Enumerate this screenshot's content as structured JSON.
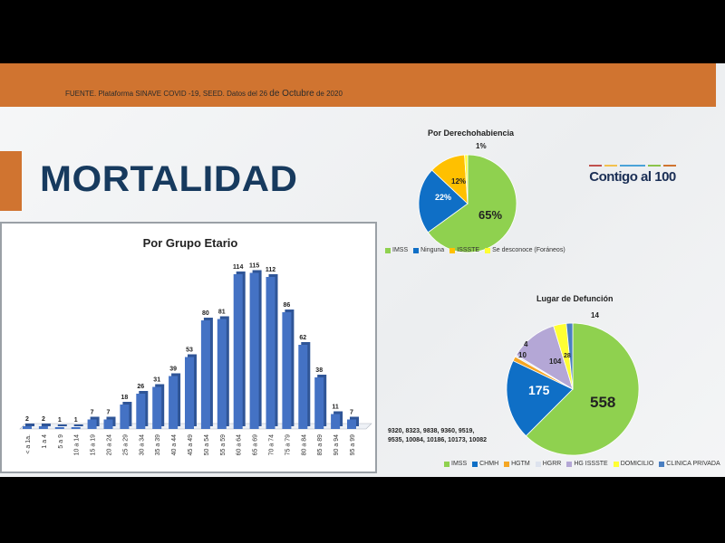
{
  "header": {
    "source_prefix": "FUENTE. Plataforma SINAVE COVID -19, SEED. Datos del 26 ",
    "source_big": "de Octubre",
    "source_suffix": " de 2020"
  },
  "title": "MORTALIDAD",
  "logo": {
    "text": "Contigo al 100",
    "colors": [
      "#c0504d",
      "#f2c14e",
      "#4aa3d8",
      "#8bc34a",
      "#d07430"
    ]
  },
  "chart_data": [
    {
      "type": "bar",
      "title": "Por Grupo Etario",
      "categories": [
        "< a 1a.",
        "1 a 4",
        "5 a 9",
        "10 a 14",
        "15 a 19",
        "20 a 24",
        "25 a 29",
        "30 a 34",
        "35 a 39",
        "40 a 44",
        "45 a 49",
        "50 a 54",
        "55 a 59",
        "60 a 64",
        "65 a 69",
        "70 a 74",
        "75 a 79",
        "80 a 84",
        "85 a 89",
        "90 a 94",
        "95 a 99"
      ],
      "values": [
        2,
        2,
        1,
        1,
        7,
        7,
        18,
        26,
        31,
        39,
        53,
        80,
        81,
        114,
        115,
        112,
        86,
        62,
        38,
        11,
        7
      ],
      "color": "#4472c4"
    },
    {
      "type": "pie",
      "title": "Por Derechohabiencia",
      "labels": [
        "IMSS",
        "Ninguna",
        "ISSSTE",
        "Se desconoce (Foráneos)"
      ],
      "values": [
        65,
        22,
        12,
        1
      ],
      "value_labels": [
        "65%",
        "22%",
        "12%",
        "1%"
      ],
      "colors": [
        "#8fd14f",
        "#0f6fc6",
        "#ffc000",
        "#ffff33"
      ]
    },
    {
      "type": "pie",
      "title": "Lugar de Defunción",
      "labels": [
        "IMSS",
        "CHMH",
        "HGTM",
        "HGRR",
        "HG ISSSTE",
        "DOMICILIO",
        "CLINICA PRIVADA"
      ],
      "values": [
        558,
        175,
        10,
        4,
        104,
        28,
        14
      ],
      "value_labels": [
        "558",
        "175",
        "10",
        "4",
        "104",
        "28",
        "14"
      ],
      "colors": [
        "#8fd14f",
        "#0f6fc6",
        "#f5a623",
        "#dde3ee",
        "#b4a7d6",
        "#ffff33",
        "#4a7fc1"
      ]
    }
  ],
  "codes": [
    "9320, 8323, 9838, 9360, 9519,",
    "9535, 10084, 10186, 10173, 10082"
  ]
}
